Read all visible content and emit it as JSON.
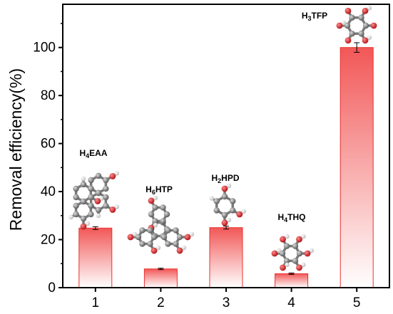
{
  "chart_data": {
    "type": "bar",
    "title": "",
    "xlabel": "",
    "ylabel": "Removal efficiency(%)",
    "categories": [
      "1",
      "2",
      "3",
      "4",
      "5"
    ],
    "values": [
      24.8,
      7.8,
      25.0,
      5.8,
      100.0
    ],
    "errors": [
      0.6,
      0.3,
      0.6,
      0.3,
      2.0
    ],
    "compound_labels": [
      {
        "prefix": "H",
        "sub": "4",
        "suffix": "EAA"
      },
      {
        "prefix": "H",
        "sub": "6",
        "suffix": "HTP"
      },
      {
        "prefix": "H",
        "sub": "2",
        "suffix": "HPD"
      },
      {
        "prefix": "H",
        "sub": "4",
        "suffix": "THQ"
      },
      {
        "prefix": "H",
        "sub": "3",
        "suffix": "TFP"
      }
    ],
    "ylim": [
      0,
      118
    ],
    "yticks": [
      0,
      20,
      40,
      60,
      80,
      100
    ],
    "grid": false,
    "colors": {
      "bar_top": "#f25757",
      "bar_bottom": "#ffffff",
      "bar_edge": "#e8332f",
      "atom_carbon": "#8a8a8a",
      "atom_oxygen": "#e0262a",
      "atom_hydrogen": "#f2f2f2"
    }
  }
}
